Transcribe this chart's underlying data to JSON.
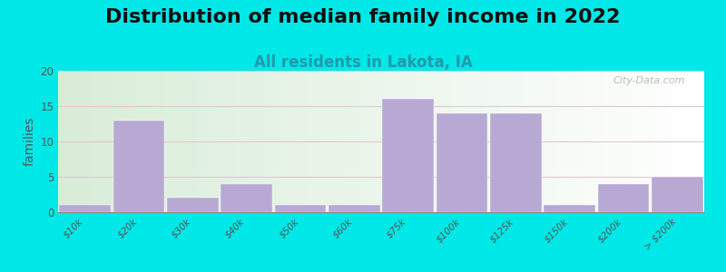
{
  "title": "Distribution of median family income in 2022",
  "subtitle": "All residents in Lakota, IA",
  "ylabel": "families",
  "categories": [
    "$10k",
    "$20k",
    "$30k",
    "$40k",
    "$50k",
    "$60k",
    "$75k",
    "$100k",
    "$125k",
    "$150k",
    "$200k",
    "> $200k"
  ],
  "values": [
    1,
    13,
    2,
    4,
    1,
    1,
    16,
    14,
    14,
    1,
    4,
    5
  ],
  "bar_color": "#b8a8d4",
  "background_color": "#00e8e8",
  "plot_bg_left": "#d8ecd8",
  "plot_bg_right": "#f8f8f8",
  "grid_color": "#e0c8d0",
  "ylim": [
    0,
    20
  ],
  "yticks": [
    0,
    5,
    10,
    15,
    20
  ],
  "title_fontsize": 16,
  "subtitle_fontsize": 12,
  "ylabel_fontsize": 10,
  "watermark": "City-Data.com"
}
